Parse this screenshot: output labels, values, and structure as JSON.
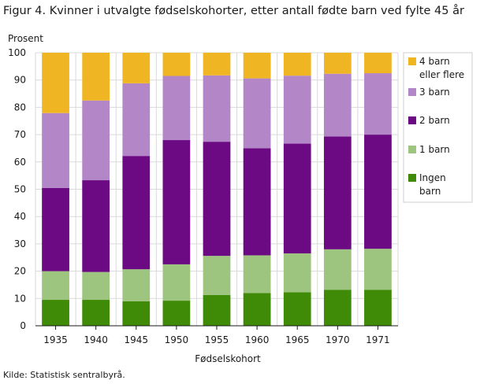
{
  "figure": {
    "title": "Figur 4. Kvinner i utvalgte fødselskohorter, etter antall fødte barn ved fylte 45 år",
    "source": "Kilde: Statistisk sentralbyrå."
  },
  "chart_data": {
    "type": "bar",
    "stacked": true,
    "title": "Figur 4. Kvinner i utvalgte fødselskohorter, etter antall fødte barn ved fylte 45 år",
    "xlabel": "Fødselskohort",
    "ylabel": "Prosent",
    "ylim": [
      0,
      100
    ],
    "yticks": [
      0,
      10,
      20,
      30,
      40,
      50,
      60,
      70,
      80,
      90,
      100
    ],
    "grid": true,
    "legend_position": "right",
    "categories": [
      "1935",
      "1940",
      "1945",
      "1950",
      "1955",
      "1960",
      "1965",
      "1970",
      "1971"
    ],
    "series": [
      {
        "name": "Ingen barn",
        "legend_lines": [
          "Ingen",
          "barn"
        ],
        "color": "#3f8a06",
        "values": [
          9.5,
          9.5,
          9.0,
          9.2,
          11.3,
          12.0,
          12.3,
          13.2,
          13.2
        ]
      },
      {
        "name": "1 barn",
        "legend_lines": [
          "1 barn"
        ],
        "color": "#9ec57f",
        "values": [
          10.5,
          10.2,
          11.7,
          13.3,
          14.3,
          13.8,
          14.2,
          14.8,
          15.0
        ]
      },
      {
        "name": "2 barn",
        "legend_lines": [
          "2 barn"
        ],
        "color": "#6b0a82",
        "values": [
          30.5,
          33.6,
          41.5,
          45.5,
          41.8,
          39.2,
          40.2,
          41.3,
          41.8
        ]
      },
      {
        "name": "3 barn",
        "legend_lines": [
          "3 barn"
        ],
        "color": "#b387c7",
        "values": [
          27.4,
          29.2,
          26.6,
          23.5,
          24.3,
          25.6,
          24.9,
          23.0,
          22.5
        ]
      },
      {
        "name": "4 barn eller flere",
        "legend_lines": [
          "4 barn",
          "eller flere"
        ],
        "color": "#efb523",
        "values": [
          22.1,
          17.5,
          11.2,
          8.5,
          8.3,
          9.4,
          8.4,
          7.7,
          7.5
        ]
      }
    ]
  }
}
